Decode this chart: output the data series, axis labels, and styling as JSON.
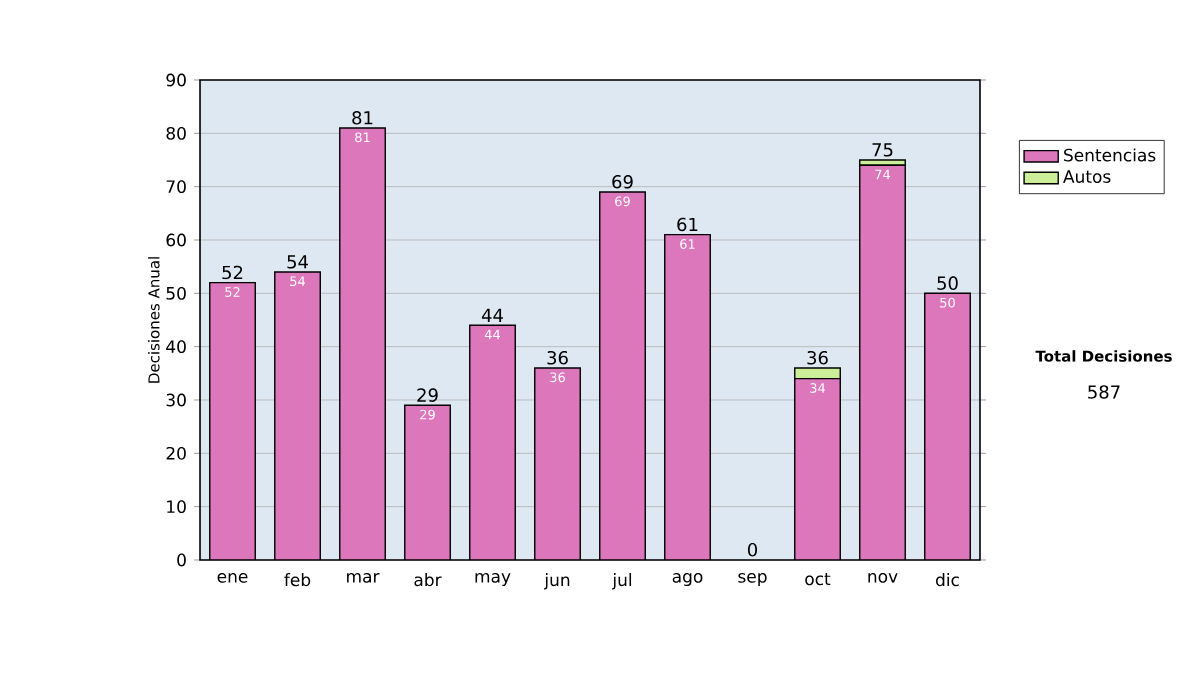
{
  "chart_data": {
    "type": "bar",
    "stacked": true,
    "ylabel": "Decisiones Anual",
    "categories": [
      "ene",
      "feb",
      "mar",
      "abr",
      "may",
      "jun",
      "jul",
      "ago",
      "sep",
      "oct",
      "nov",
      "dic"
    ],
    "series": [
      {
        "name": "Sentencias",
        "color": "#dd77bb",
        "values": [
          52,
          54,
          81,
          29,
          44,
          36,
          69,
          61,
          0,
          34,
          74,
          50
        ],
        "value_labels": [
          "52",
          "54",
          "81",
          "29",
          "44",
          "36",
          "69",
          "61",
          null,
          "34",
          "74",
          "50"
        ]
      },
      {
        "name": "Autos",
        "color": "#ccee99",
        "values": [
          0,
          0,
          0,
          0,
          0,
          0,
          0,
          0,
          0,
          2,
          1,
          0
        ]
      }
    ],
    "totals": [
      "52",
      "54",
      "81",
      "29",
      "44",
      "36",
      "69",
      "61",
      "0",
      "36",
      "75",
      "50"
    ],
    "ylim": [
      0,
      90
    ],
    "yticks": [
      0,
      10,
      20,
      30,
      40,
      50,
      60,
      70,
      80,
      90
    ],
    "grid": "y",
    "legend": "right",
    "annotations": [
      "Total Decisiones",
      "587"
    ]
  }
}
